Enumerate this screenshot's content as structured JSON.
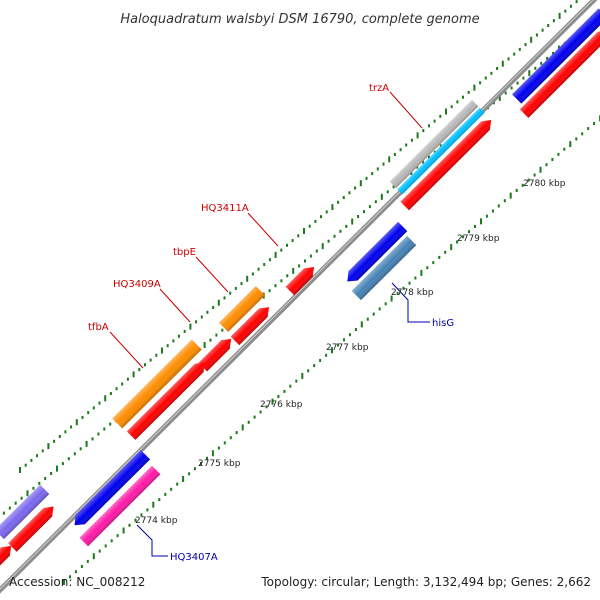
{
  "title": "Haloquadratum walsbyi DSM 16790, complete genome",
  "footer": {
    "accession": "Accession: NC_008212",
    "summary": "Topology: circular; Length: 3,132,494 bp; Genes: 2,662"
  },
  "kbp_labels": [
    "2774 kbp",
    "2775 kbp",
    "2776 kbp",
    "2777 kbp",
    "2778 kbp",
    "2779 kbp",
    "2780 kbp"
  ],
  "colors": {
    "backbone": "#8c8c8c",
    "tick": "#1a7a1a",
    "forward_label": "#cc0000",
    "reverse_label": "#0000aa",
    "cds_red": "#ff0000",
    "orange": "#ff8c00",
    "blue": "#0000ee",
    "steel": "#4682b4",
    "gray": "#b8b8b8",
    "cyan": "#00bfff",
    "magenta": "#ff1aa8",
    "purple": "#7b68ee"
  },
  "gene_labels": {
    "forward": [
      "trzA",
      "HQ3411A",
      "tbpE",
      "HQ3409A",
      "tfbA"
    ],
    "reverse": [
      "hisG",
      "HQ3407A"
    ]
  }
}
